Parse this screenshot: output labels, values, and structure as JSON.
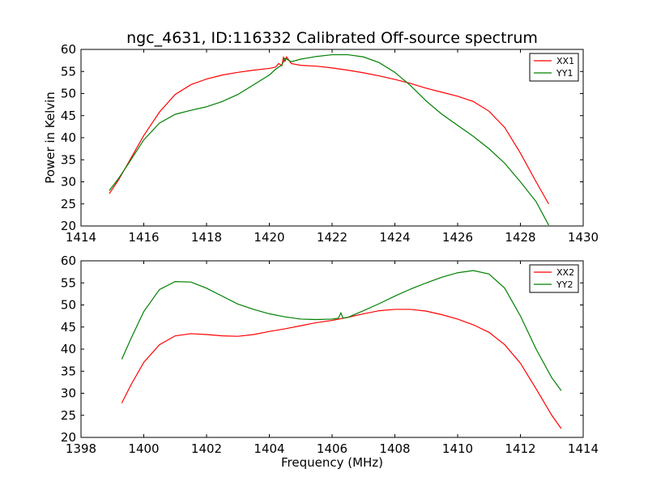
{
  "chart_data": [
    {
      "type": "line",
      "title": "ngc_4631, ID:116332 Calibrated Off-source spectrum",
      "xlabel": "",
      "ylabel": "Power in Kelvin",
      "xlim": [
        1414,
        1430
      ],
      "ylim": [
        20,
        60
      ],
      "xticks": [
        1414,
        1416,
        1418,
        1420,
        1422,
        1424,
        1426,
        1428,
        1430
      ],
      "yticks": [
        20,
        25,
        30,
        35,
        40,
        45,
        50,
        55,
        60
      ],
      "legend_position": "top-right",
      "grid": false,
      "series": [
        {
          "name": "XX1",
          "color": "#ff0000",
          "points": [
            [
              1414.9,
              27.3
            ],
            [
              1415.2,
              30.5
            ],
            [
              1415.5,
              34.2
            ],
            [
              1416.0,
              40.5
            ],
            [
              1416.5,
              45.8
            ],
            [
              1417.0,
              49.8
            ],
            [
              1417.5,
              52.0
            ],
            [
              1418.0,
              53.3
            ],
            [
              1418.5,
              54.2
            ],
            [
              1419.0,
              54.8
            ],
            [
              1419.5,
              55.3
            ],
            [
              1420.0,
              55.7
            ],
            [
              1420.2,
              56.0
            ],
            [
              1420.3,
              56.8
            ],
            [
              1420.4,
              56.3
            ],
            [
              1420.45,
              58.2
            ],
            [
              1420.5,
              57.3
            ],
            [
              1420.55,
              58.3
            ],
            [
              1420.7,
              56.8
            ],
            [
              1421.0,
              56.4
            ],
            [
              1421.5,
              56.2
            ],
            [
              1422.0,
              55.8
            ],
            [
              1422.5,
              55.3
            ],
            [
              1423.0,
              54.7
            ],
            [
              1423.5,
              54.0
            ],
            [
              1424.0,
              53.2
            ],
            [
              1424.5,
              52.3
            ],
            [
              1425.0,
              51.2
            ],
            [
              1425.5,
              50.3
            ],
            [
              1426.0,
              49.4
            ],
            [
              1426.5,
              48.2
            ],
            [
              1427.0,
              46.0
            ],
            [
              1427.5,
              42.3
            ],
            [
              1428.0,
              36.5
            ],
            [
              1428.5,
              30.0
            ],
            [
              1428.9,
              25.0
            ]
          ]
        },
        {
          "name": "YY1",
          "color": "#008000",
          "points": [
            [
              1414.9,
              28.0
            ],
            [
              1415.2,
              30.8
            ],
            [
              1415.5,
              34.0
            ],
            [
              1416.0,
              39.5
            ],
            [
              1416.5,
              43.3
            ],
            [
              1417.0,
              45.3
            ],
            [
              1417.5,
              46.2
            ],
            [
              1418.0,
              47.0
            ],
            [
              1418.5,
              48.2
            ],
            [
              1419.0,
              49.8
            ],
            [
              1419.5,
              52.0
            ],
            [
              1420.0,
              54.2
            ],
            [
              1420.2,
              55.5
            ],
            [
              1420.4,
              56.5
            ],
            [
              1420.5,
              58.0
            ],
            [
              1420.7,
              57.2
            ],
            [
              1421.0,
              57.8
            ],
            [
              1421.5,
              58.4
            ],
            [
              1422.0,
              58.8
            ],
            [
              1422.5,
              58.8
            ],
            [
              1423.0,
              58.3
            ],
            [
              1423.5,
              57.0
            ],
            [
              1424.0,
              54.8
            ],
            [
              1424.5,
              51.8
            ],
            [
              1425.0,
              48.3
            ],
            [
              1425.5,
              45.3
            ],
            [
              1426.0,
              42.8
            ],
            [
              1426.5,
              40.3
            ],
            [
              1427.0,
              37.5
            ],
            [
              1427.5,
              34.2
            ],
            [
              1428.0,
              30.0
            ],
            [
              1428.5,
              25.5
            ],
            [
              1428.9,
              20.2
            ]
          ]
        }
      ]
    },
    {
      "type": "line",
      "title": "",
      "xlabel": "Frequency (MHz)",
      "ylabel": "",
      "xlim": [
        1398,
        1414
      ],
      "ylim": [
        20,
        60
      ],
      "xticks": [
        1398,
        1400,
        1402,
        1404,
        1406,
        1408,
        1410,
        1412,
        1414
      ],
      "yticks": [
        20,
        25,
        30,
        35,
        40,
        45,
        50,
        55,
        60
      ],
      "legend_position": "top-right",
      "grid": false,
      "series": [
        {
          "name": "XX2",
          "color": "#ff0000",
          "points": [
            [
              1399.3,
              27.8
            ],
            [
              1399.6,
              32.0
            ],
            [
              1400.0,
              37.0
            ],
            [
              1400.5,
              41.0
            ],
            [
              1401.0,
              43.0
            ],
            [
              1401.5,
              43.5
            ],
            [
              1402.0,
              43.3
            ],
            [
              1402.5,
              43.0
            ],
            [
              1403.0,
              42.9
            ],
            [
              1403.5,
              43.3
            ],
            [
              1404.0,
              44.0
            ],
            [
              1404.5,
              44.6
            ],
            [
              1405.0,
              45.3
            ],
            [
              1405.5,
              46.0
            ],
            [
              1406.0,
              46.5
            ],
            [
              1406.5,
              47.2
            ],
            [
              1407.0,
              48.0
            ],
            [
              1407.5,
              48.7
            ],
            [
              1408.0,
              49.0
            ],
            [
              1408.5,
              49.0
            ],
            [
              1409.0,
              48.6
            ],
            [
              1409.5,
              47.8
            ],
            [
              1410.0,
              46.8
            ],
            [
              1410.5,
              45.5
            ],
            [
              1411.0,
              43.8
            ],
            [
              1411.5,
              41.0
            ],
            [
              1412.0,
              36.8
            ],
            [
              1412.5,
              31.0
            ],
            [
              1413.0,
              25.0
            ],
            [
              1413.3,
              22.0
            ]
          ]
        },
        {
          "name": "YY2",
          "color": "#008000",
          "points": [
            [
              1399.3,
              37.7
            ],
            [
              1399.6,
              42.5
            ],
            [
              1400.0,
              48.5
            ],
            [
              1400.5,
              53.5
            ],
            [
              1401.0,
              55.3
            ],
            [
              1401.5,
              55.2
            ],
            [
              1402.0,
              53.8
            ],
            [
              1402.5,
              52.0
            ],
            [
              1403.0,
              50.2
            ],
            [
              1403.5,
              49.0
            ],
            [
              1404.0,
              48.0
            ],
            [
              1404.5,
              47.3
            ],
            [
              1405.0,
              46.8
            ],
            [
              1405.5,
              46.7
            ],
            [
              1406.0,
              46.8
            ],
            [
              1406.2,
              47.0
            ],
            [
              1406.28,
              48.2
            ],
            [
              1406.35,
              47.0
            ],
            [
              1406.5,
              47.2
            ],
            [
              1407.0,
              48.7
            ],
            [
              1407.5,
              50.3
            ],
            [
              1408.0,
              52.0
            ],
            [
              1408.5,
              53.6
            ],
            [
              1409.0,
              55.0
            ],
            [
              1409.5,
              56.3
            ],
            [
              1410.0,
              57.3
            ],
            [
              1410.5,
              57.8
            ],
            [
              1411.0,
              57.0
            ],
            [
              1411.5,
              53.8
            ],
            [
              1412.0,
              47.5
            ],
            [
              1412.5,
              40.0
            ],
            [
              1413.0,
              33.5
            ],
            [
              1413.3,
              30.6
            ]
          ]
        }
      ]
    }
  ]
}
